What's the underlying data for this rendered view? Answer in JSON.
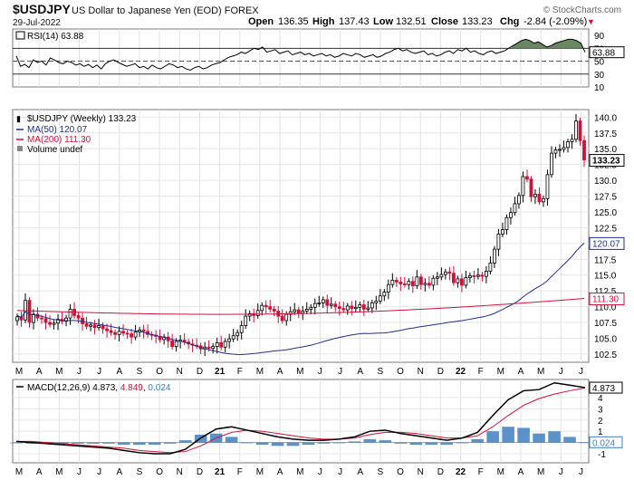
{
  "header": {
    "symbol": "$USDJPY",
    "description": "US Dollar to Japanese Yen (EOD) FOREX",
    "date": "29-Jul-2022",
    "watermark": "© StockCharts.com",
    "open_label": "Open",
    "open": "136.35",
    "high_label": "High",
    "high": "137.43",
    "low_label": "Low",
    "low": "132.51",
    "close_label": "Close",
    "close": "133.23",
    "chg_label": "Chg",
    "chg": "-2.84 (-2.09%)",
    "down_marker": "▼"
  },
  "colors": {
    "up_candle": "#ffffff",
    "down_candle": "#d0103a",
    "ma50": "#1f2e8c",
    "ma200": "#d0103a",
    "rsi_fill": "#5a7a52",
    "macd_line": "#000000",
    "signal_line": "#d0103a",
    "histogram": "#3f7fbf"
  },
  "chart_data": [
    {
      "type": "line",
      "title": "RSI(14) 63.88",
      "legend": [
        "RSI(14) 63.88"
      ],
      "ylim": [
        10,
        100
      ],
      "y_ticks": [
        10,
        30,
        50,
        70,
        90
      ],
      "reference_lines": [
        30,
        50,
        70
      ],
      "last_value_label": "63.88",
      "grid": true,
      "series": [
        {
          "values": [
            58,
            42,
            45,
            40,
            52,
            48,
            50,
            44,
            55,
            52,
            48,
            46,
            50,
            48,
            44,
            46,
            42,
            45,
            40,
            44,
            38,
            46,
            50,
            52,
            48,
            45,
            42,
            44,
            46,
            40,
            42,
            38,
            44,
            40,
            38,
            42,
            46,
            44,
            40,
            42,
            38,
            36,
            40,
            42,
            38,
            40,
            44,
            46,
            48,
            52,
            56,
            58,
            60,
            64,
            62,
            66,
            70,
            68,
            72,
            64,
            66,
            68,
            62,
            64,
            66,
            60,
            62,
            64,
            60,
            62,
            58,
            60,
            62,
            58,
            60,
            56,
            58,
            62,
            60,
            58,
            62,
            60,
            56,
            58,
            60,
            56,
            58,
            62,
            64,
            68,
            70,
            66,
            68,
            64,
            62,
            64,
            66,
            60,
            62,
            58,
            60,
            64,
            66,
            62,
            68,
            66,
            70,
            64,
            66,
            62,
            60,
            64,
            66,
            62,
            64,
            66,
            70,
            74,
            78,
            82,
            84,
            82,
            78,
            80,
            76,
            72,
            74,
            78,
            80,
            82,
            84,
            84,
            82,
            78,
            63.88
          ]
        }
      ]
    },
    {
      "type": "line",
      "title": "$USDJPY (Weekly) 133.23",
      "legend": [
        "$USDJPY (Weekly) 133.23",
        "MA(50) 120.07",
        "MA(200) 111.30",
        "Volume undef"
      ],
      "x_month_labels": [
        "M",
        "A",
        "M",
        "J",
        "J",
        "A",
        "S",
        "O",
        "N",
        "D",
        "21",
        "F",
        "M",
        "A",
        "M",
        "J",
        "J",
        "A",
        "S",
        "O",
        "N",
        "D",
        "22",
        "F",
        "M",
        "A",
        "M",
        "J",
        "J"
      ],
      "ylim": [
        101.2,
        141.2
      ],
      "y_ticks": [
        102.5,
        105.0,
        107.5,
        110.0,
        112.5,
        115.0,
        117.5,
        120.0,
        122.5,
        125.0,
        127.5,
        130.0,
        132.5,
        135.0,
        137.5,
        140.0
      ],
      "y_tick_labels": [
        "102.5",
        "105.0",
        "107.5",
        "110.0",
        "112.5",
        "115.0",
        "117.5",
        "120.0",
        "122.5",
        "125.0",
        "127.5",
        "130.0",
        "132.5",
        "135.0",
        "137.5",
        "140.0"
      ],
      "last_value_labels": [
        "133.23",
        "120.07",
        "111.30"
      ],
      "grid": true,
      "candles_close": [
        108.4,
        107.9,
        111.0,
        107.5,
        108.8,
        108.2,
        108.1,
        107.5,
        107.2,
        107.4,
        108.0,
        107.7,
        108.2,
        109.6,
        108.6,
        108.2,
        107.3,
        106.9,
        107.1,
        106.7,
        107.0,
        106.5,
        106.2,
        105.9,
        105.6,
        106.1,
        105.8,
        105.7,
        105.2,
        106.0,
        106.3,
        106.1,
        105.6,
        105.5,
        105.3,
        104.8,
        105.2,
        104.6,
        103.7,
        104.5,
        104.7,
        104.4,
        104.1,
        103.9,
        103.8,
        103.3,
        103.6,
        103.4,
        103.7,
        104.3,
        103.6,
        104.5,
        104.9,
        105.4,
        105.9,
        107.0,
        108.5,
        108.9,
        108.6,
        109.4,
        110.2,
        110.0,
        109.6,
        109.3,
        108.5,
        107.8,
        108.8,
        109.2,
        109.5,
        109.0,
        109.3,
        109.6,
        109.9,
        110.5,
        110.6,
        111.1,
        110.2,
        110.4,
        110.0,
        109.7,
        109.5,
        110.1,
        109.7,
        109.9,
        110.3,
        109.6,
        109.8,
        110.6,
        110.9,
        111.7,
        112.3,
        113.5,
        114.2,
        113.9,
        113.6,
        113.5,
        114.0,
        113.3,
        114.7,
        113.5,
        113.7,
        113.4,
        114.5,
        114.7,
        115.1,
        115.5,
        115.3,
        113.8,
        114.4,
        113.4,
        114.6,
        114.9,
        114.8,
        115.0,
        114.8,
        115.6,
        116.9,
        119.1,
        121.5,
        122.2,
        124.1,
        124.9,
        126.3,
        127.6,
        130.6,
        130.2,
        127.4,
        127.8,
        126.6,
        127.1,
        130.9,
        134.3,
        134.8,
        134.9,
        135.2,
        136.1,
        136.5,
        139.4,
        136.3,
        133.23
      ],
      "series": [
        {
          "name": "MA(50)",
          "first": 108.6,
          "last": 120.07
        },
        {
          "name": "MA(200)",
          "first": 109.4,
          "last": 111.3
        }
      ]
    },
    {
      "type": "line",
      "title": "MACD(12,26,9) 4.873, 4.849, 0.024",
      "legend": [
        "MACD(12,26,9) 4.873, 4.849, 0.024"
      ],
      "ylim": [
        -1.8,
        5.6
      ],
      "y_ticks": [
        -1,
        0,
        1,
        2,
        3,
        4
      ],
      "y_tick_labels": [
        "-1",
        "0",
        "1",
        "2",
        "3",
        "4"
      ],
      "last_value_labels": [
        "4.873",
        "0.024"
      ],
      "grid": true,
      "series": [
        {
          "name": "MACD",
          "values": [
            0.1,
            0.0,
            -0.1,
            -0.2,
            -0.3,
            -0.4,
            -0.5,
            -0.7,
            -0.9,
            -1.0,
            -1.0,
            -0.6,
            0.4,
            1.2,
            1.4,
            1.1,
            0.8,
            0.5,
            0.3,
            0.2,
            0.2,
            0.3,
            0.5,
            1.0,
            1.1,
            0.8,
            0.6,
            0.4,
            0.2,
            0.4,
            0.9,
            2.4,
            3.8,
            4.6,
            4.7,
            5.3,
            5.1,
            4.873
          ]
        },
        {
          "name": "Signal",
          "values": [
            0.1,
            0.1,
            0.0,
            -0.1,
            -0.2,
            -0.3,
            -0.4,
            -0.5,
            -0.7,
            -0.8,
            -0.9,
            -0.8,
            -0.3,
            0.4,
            0.9,
            1.1,
            1.0,
            0.8,
            0.6,
            0.4,
            0.3,
            0.3,
            0.4,
            0.7,
            0.9,
            0.9,
            0.8,
            0.6,
            0.4,
            0.4,
            0.6,
            1.4,
            2.4,
            3.3,
            3.9,
            4.3,
            4.6,
            4.849
          ]
        },
        {
          "name": "Histogram",
          "values": [
            0.0,
            -0.1,
            -0.1,
            -0.1,
            -0.1,
            -0.1,
            -0.1,
            -0.2,
            -0.2,
            -0.2,
            -0.1,
            0.2,
            0.7,
            0.8,
            0.5,
            0.0,
            -0.2,
            -0.3,
            -0.3,
            -0.2,
            -0.1,
            0.0,
            0.1,
            0.3,
            0.2,
            -0.1,
            -0.2,
            -0.2,
            -0.2,
            0.0,
            0.3,
            1.0,
            1.4,
            1.3,
            0.8,
            1.0,
            0.5,
            0.024
          ]
        }
      ]
    }
  ]
}
